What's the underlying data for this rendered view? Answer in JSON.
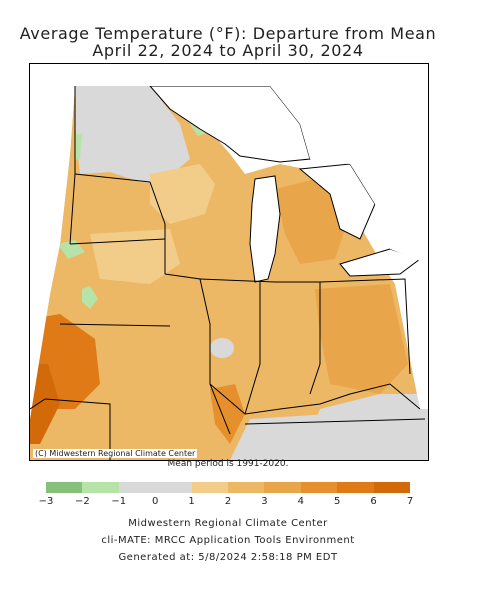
{
  "title": {
    "line1": "Average Temperature (°F): Departure from Mean",
    "line2": "April 22, 2024 to April 30, 2024"
  },
  "map": {
    "copyright": "(C) Midwestern Regional Climate Center",
    "mean_period": "Mean period is 1991-2020."
  },
  "legend": {
    "ticks": [
      "−3",
      "−2",
      "−1",
      "0",
      "1",
      "2",
      "3",
      "4",
      "5",
      "6",
      "7"
    ],
    "bins": [
      {
        "from": -3,
        "to": -2,
        "color": "#86c07a"
      },
      {
        "from": -2,
        "to": -1,
        "color": "#b5e3a8"
      },
      {
        "from": -1,
        "to": 0,
        "color": "#d9d9d9"
      },
      {
        "from": 0,
        "to": 1,
        "color": "#d9d9d9"
      },
      {
        "from": 1,
        "to": 2,
        "color": "#f2cd8a"
      },
      {
        "from": 2,
        "to": 3,
        "color": "#edb866"
      },
      {
        "from": 3,
        "to": 4,
        "color": "#e9a549"
      },
      {
        "from": 4,
        "to": 5,
        "color": "#e5902c"
      },
      {
        "from": 5,
        "to": 6,
        "color": "#df7a17"
      },
      {
        "from": 6,
        "to": 7,
        "color": "#d26a0a"
      }
    ]
  },
  "footer": {
    "line1": "Midwestern Regional Climate Center",
    "line2": "cli-MATE: MRCC Application Tools Environment",
    "line3": "Generated at: 5/8/2024 2:58:18 PM EDT"
  },
  "colors": {
    "gray_near_normal": "#d9d9d9",
    "light_orange": "#f2cd8a",
    "mid_orange": "#e9a549",
    "dark_orange": "#d26a0a",
    "green": "#b5e3a8"
  }
}
